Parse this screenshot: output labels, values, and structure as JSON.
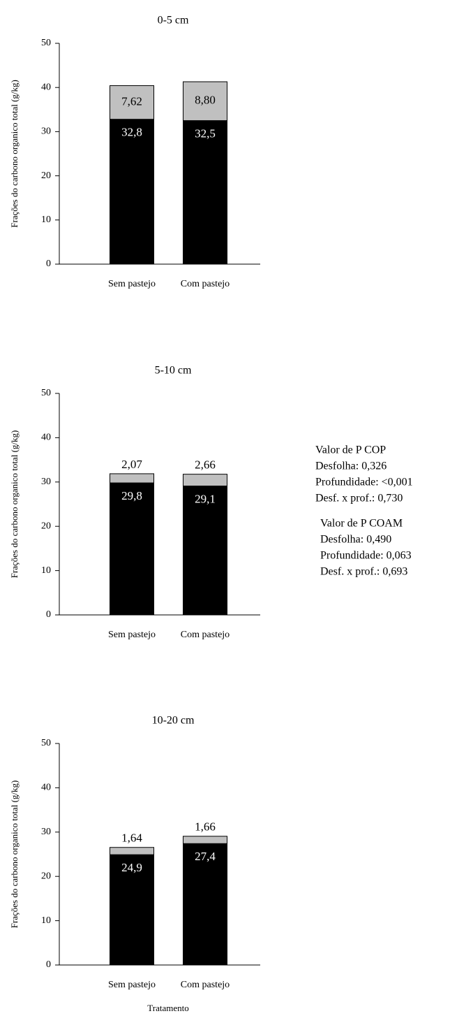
{
  "chart_data": [
    {
      "type": "bar",
      "stacked": true,
      "title": "0-5 cm",
      "ylabel": "Frações do carbono organico total (g/kg)",
      "categories": [
        "Sem pastejo",
        "Com pastejo"
      ],
      "series": [
        {
          "color": "#000000",
          "values": [
            32.8,
            32.5
          ],
          "value_labels": [
            "32,8",
            "32,5"
          ]
        },
        {
          "color": "#c0c0c0",
          "values": [
            7.62,
            8.8
          ],
          "value_labels": [
            "7,62",
            "8,80"
          ]
        }
      ],
      "ylim": [
        0,
        50
      ],
      "yticks": [
        0,
        10,
        20,
        30,
        40,
        50
      ]
    },
    {
      "type": "bar",
      "stacked": true,
      "title": "5-10 cm",
      "ylabel": "Frações do carbono organico total (g/kg)",
      "categories": [
        "Sem pastejo",
        "Com pastejo"
      ],
      "series": [
        {
          "color": "#000000",
          "values": [
            29.8,
            29.1
          ],
          "value_labels": [
            "29,8",
            "29,1"
          ]
        },
        {
          "color": "#c0c0c0",
          "values": [
            2.07,
            2.66
          ],
          "value_labels": [
            "2,07",
            "2,66"
          ]
        }
      ],
      "ylim": [
        0,
        50
      ],
      "yticks": [
        0,
        10,
        20,
        30,
        40,
        50
      ],
      "annotations": [
        [
          "Valor de P COP",
          "Desfolha: 0,326",
          "Profundidade: <0,001",
          "Desf. x prof.: 0,730"
        ],
        [
          "Valor de P COAM",
          "Desfolha: 0,490",
          "Profundidade: 0,063",
          "Desf. x prof.: 0,693"
        ]
      ]
    },
    {
      "type": "bar",
      "stacked": true,
      "title": "10-20 cm",
      "ylabel": "Frações do carbono organico total (g/kg)",
      "xlabel": "Tratamento",
      "categories": [
        "Sem pastejo",
        "Com pastejo"
      ],
      "series": [
        {
          "color": "#000000",
          "values": [
            24.9,
            27.4
          ],
          "value_labels": [
            "24,9",
            "27,4"
          ]
        },
        {
          "color": "#c0c0c0",
          "values": [
            1.64,
            1.66
          ],
          "value_labels": [
            "1,64",
            "1,66"
          ]
        }
      ],
      "ylim": [
        0,
        50
      ],
      "yticks": [
        0,
        10,
        20,
        30,
        40,
        50
      ]
    }
  ]
}
